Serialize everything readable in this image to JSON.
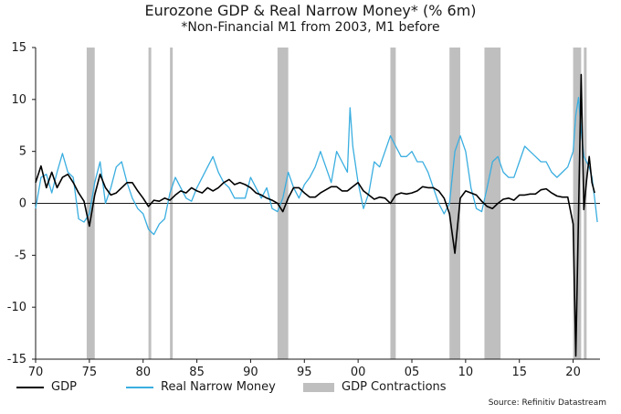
{
  "title": "Eurozone GDP & Real Narrow Money* (% 6m)",
  "subtitle": "*Non-Financial M1 from 2003, M1 before",
  "source": "Source: Refinitiv Datastream",
  "chart_data": {
    "type": "line",
    "title": "Eurozone GDP & Real Narrow Money* (% 6m)",
    "subtitle": "*Non-Financial M1 from 2003, M1 before",
    "xlim": [
      1970,
      2022.5
    ],
    "ylim": [
      -15,
      15
    ],
    "x_ticks": [
      1970,
      1975,
      1980,
      1985,
      1990,
      1995,
      2000,
      2005,
      2010,
      2015,
      2020
    ],
    "x_tick_labels": [
      "70",
      "75",
      "80",
      "85",
      "90",
      "95",
      "00",
      "05",
      "10",
      "15",
      "20"
    ],
    "y_ticks": [
      -15,
      -10,
      -5,
      0,
      5,
      10,
      15
    ],
    "y_tick_labels": [
      "-15",
      "-10",
      "-5",
      "0",
      "5",
      "10",
      "15"
    ],
    "legend": "bottom",
    "shaded_periods_label": "GDP Contractions",
    "shaded_periods": [
      [
        1974.75,
        1975.5
      ],
      [
        1980.5,
        1980.75
      ],
      [
        1982.5,
        1982.75
      ],
      [
        1992.5,
        1993.5
      ],
      [
        2003.0,
        2003.5
      ],
      [
        2008.5,
        2009.5
      ],
      [
        2011.75,
        2013.25
      ],
      [
        2020.0,
        2020.75
      ],
      [
        2021.0,
        2021.25
      ]
    ],
    "series": [
      {
        "name": "GDP",
        "color": "#000000",
        "x": [
          1970.0,
          1970.5,
          1971.0,
          1971.5,
          1972.0,
          1972.5,
          1973.0,
          1973.5,
          1974.0,
          1974.5,
          1975.0,
          1975.5,
          1976.0,
          1976.5,
          1977.0,
          1977.5,
          1978.0,
          1978.5,
          1979.0,
          1979.5,
          1980.0,
          1980.5,
          1981.0,
          1981.5,
          1982.0,
          1982.5,
          1983.0,
          1983.5,
          1984.0,
          1984.5,
          1985.0,
          1985.5,
          1986.0,
          1986.5,
          1987.0,
          1987.5,
          1988.0,
          1988.5,
          1989.0,
          1989.5,
          1990.0,
          1990.5,
          1991.0,
          1991.5,
          1992.0,
          1992.5,
          1993.0,
          1993.5,
          1994.0,
          1994.5,
          1995.0,
          1995.5,
          1996.0,
          1996.5,
          1997.0,
          1997.5,
          1998.0,
          1998.5,
          1999.0,
          1999.5,
          2000.0,
          2000.5,
          2001.0,
          2001.5,
          2002.0,
          2002.5,
          2003.0,
          2003.5,
          2004.0,
          2004.5,
          2005.0,
          2005.5,
          2006.0,
          2006.5,
          2007.0,
          2007.5,
          2008.0,
          2008.5,
          2009.0,
          2009.5,
          2010.0,
          2010.5,
          2011.0,
          2011.5,
          2012.0,
          2012.5,
          2013.0,
          2013.5,
          2014.0,
          2014.5,
          2015.0,
          2015.5,
          2016.0,
          2016.5,
          2017.0,
          2017.5,
          2018.0,
          2018.5,
          2019.0,
          2019.5,
          2020.0,
          2020.25,
          2020.5,
          2020.75,
          2021.0,
          2021.25,
          2021.5,
          2021.75,
          2022.0
        ],
        "values": [
          2.0,
          3.6,
          1.5,
          3.0,
          1.5,
          2.5,
          2.8,
          2.0,
          1.0,
          0.2,
          -2.2,
          0.8,
          2.8,
          1.5,
          0.8,
          1.0,
          1.5,
          2.0,
          2.0,
          1.2,
          0.5,
          -0.3,
          0.3,
          0.2,
          0.5,
          0.3,
          0.8,
          1.2,
          1.0,
          1.5,
          1.2,
          1.0,
          1.5,
          1.2,
          1.5,
          2.0,
          2.3,
          1.8,
          2.0,
          1.8,
          1.5,
          1.0,
          0.8,
          0.5,
          0.3,
          0.0,
          -0.8,
          0.5,
          1.5,
          1.5,
          1.0,
          0.6,
          0.6,
          1.0,
          1.3,
          1.6,
          1.6,
          1.2,
          1.2,
          1.6,
          2.0,
          1.2,
          0.8,
          0.4,
          0.6,
          0.5,
          0.0,
          0.8,
          1.0,
          0.9,
          1.0,
          1.2,
          1.6,
          1.5,
          1.5,
          1.2,
          0.5,
          -1.0,
          -4.8,
          0.5,
          1.2,
          1.0,
          0.8,
          0.2,
          -0.3,
          -0.5,
          0.0,
          0.4,
          0.5,
          0.3,
          0.8,
          0.8,
          0.9,
          0.9,
          1.3,
          1.4,
          1.0,
          0.7,
          0.6,
          0.6,
          -2.0,
          -14.7,
          -1.0,
          12.4,
          -0.6,
          2.2,
          4.5,
          2.0,
          1.0
        ]
      },
      {
        "name": "Real Narrow Money",
        "color": "#3aaee0",
        "x": [
          1970.0,
          1970.5,
          1971.0,
          1971.5,
          1972.0,
          1972.5,
          1973.0,
          1973.5,
          1974.0,
          1974.5,
          1975.0,
          1975.5,
          1976.0,
          1976.5,
          1977.0,
          1977.5,
          1978.0,
          1978.5,
          1979.0,
          1979.5,
          1980.0,
          1980.5,
          1981.0,
          1981.5,
          1982.0,
          1982.5,
          1983.0,
          1983.5,
          1984.0,
          1984.5,
          1985.0,
          1985.5,
          1986.0,
          1986.5,
          1987.0,
          1987.5,
          1988.0,
          1988.5,
          1989.0,
          1989.5,
          1990.0,
          1990.5,
          1991.0,
          1991.5,
          1992.0,
          1992.5,
          1993.0,
          1993.5,
          1994.0,
          1994.5,
          1995.0,
          1995.5,
          1996.0,
          1996.5,
          1997.0,
          1997.5,
          1998.0,
          1998.5,
          1999.0,
          1999.25,
          1999.5,
          2000.0,
          2000.5,
          2001.0,
          2001.5,
          2002.0,
          2002.5,
          2003.0,
          2003.5,
          2004.0,
          2004.5,
          2005.0,
          2005.5,
          2006.0,
          2006.5,
          2007.0,
          2007.5,
          2008.0,
          2008.5,
          2009.0,
          2009.5,
          2010.0,
          2010.5,
          2011.0,
          2011.5,
          2012.0,
          2012.5,
          2013.0,
          2013.5,
          2014.0,
          2014.5,
          2015.0,
          2015.5,
          2016.0,
          2016.5,
          2017.0,
          2017.5,
          2018.0,
          2018.5,
          2019.0,
          2019.5,
          2020.0,
          2020.25,
          2020.5,
          2020.75,
          2021.0,
          2021.25,
          2021.5,
          2021.75,
          2022.0,
          2022.25
        ],
        "values": [
          -0.5,
          2.5,
          2.8,
          1.0,
          3.0,
          4.8,
          3.0,
          2.5,
          -1.5,
          -1.8,
          -1.0,
          2.0,
          4.0,
          0.0,
          1.5,
          3.5,
          4.0,
          2.0,
          0.5,
          -0.5,
          -1.0,
          -2.5,
          -3.0,
          -2.0,
          -1.5,
          1.0,
          2.5,
          1.5,
          0.5,
          0.2,
          1.5,
          2.5,
          3.5,
          4.5,
          3.0,
          2.0,
          1.5,
          0.5,
          0.5,
          0.5,
          2.5,
          1.5,
          0.5,
          1.5,
          -0.5,
          -0.8,
          0.5,
          3.0,
          1.5,
          0.5,
          1.8,
          2.5,
          3.5,
          5.0,
          3.5,
          2.0,
          5.0,
          4.0,
          3.0,
          9.2,
          5.5,
          2.0,
          -0.5,
          1.0,
          4.0,
          3.5,
          5.0,
          6.5,
          5.5,
          4.5,
          4.5,
          5.0,
          4.0,
          4.0,
          3.0,
          1.5,
          0.0,
          -1.0,
          0.0,
          5.0,
          6.5,
          5.0,
          1.5,
          -0.5,
          -0.8,
          1.5,
          4.0,
          4.5,
          3.0,
          2.5,
          2.5,
          4.0,
          5.5,
          5.0,
          4.5,
          4.0,
          4.0,
          3.0,
          2.5,
          3.0,
          3.5,
          5.0,
          8.5,
          10.2,
          7.0,
          4.5,
          4.0,
          3.5,
          2.5,
          0.5,
          -1.8
        ]
      }
    ]
  }
}
